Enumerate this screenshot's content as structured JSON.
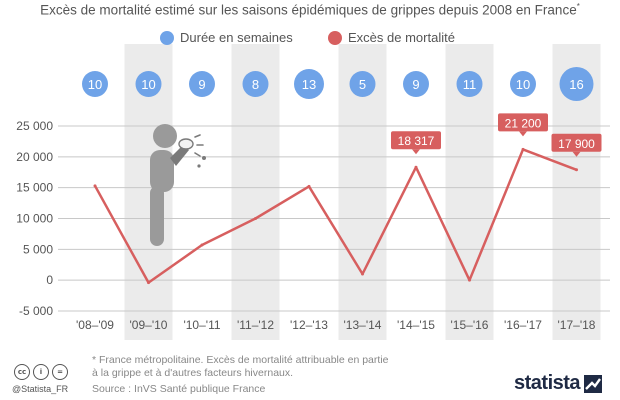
{
  "title": "Excès de mortalité estimé sur les saisons épidémiques de grippes depuis 2008 en France",
  "title_marker": "*",
  "colors": {
    "duration": "#6fa3e8",
    "mortality": "#d75f5f",
    "band": "#ebebeb",
    "grid": "#c8c8c8",
    "text": "#555555"
  },
  "icons": [
    "sneezing-person-icon",
    "cc-icon",
    "by-icon",
    "equals-icon",
    "statista-logo-icon"
  ],
  "chart_data": {
    "type": "line",
    "title": "Excès de mortalité estimé sur les saisons épidémiques de grippes depuis 2008 en France",
    "categories": [
      "'08–'09",
      "'09–'10",
      "'10–'11",
      "'11–'12",
      "'12–'13",
      "'13–'14",
      "'14–'15",
      "'15–'16",
      "'16–'17",
      "'17–'18"
    ],
    "series": [
      {
        "name": "Excès de mortalité",
        "values": [
          15300,
          -400,
          5700,
          10000,
          15200,
          1000,
          18317,
          0,
          21200,
          17900
        ],
        "data_labels": {
          "6": "18 317",
          "8": "21 200",
          "9": "17 900"
        }
      },
      {
        "name": "Durée en semaines",
        "values": [
          10,
          10,
          9,
          8,
          13,
          5,
          9,
          11,
          10,
          16
        ]
      }
    ],
    "ylim": [
      -5000,
      25000
    ],
    "yticks": [
      25000,
      20000,
      15000,
      10000,
      5000,
      0,
      -5000
    ],
    "ytick_labels": [
      "25 000",
      "20 000",
      "15 000",
      "10 000",
      "5 000",
      "0",
      "-5 000"
    ],
    "grid": true,
    "alternating_bands": true,
    "legend_position": "top-center"
  },
  "footer": {
    "footnote": "* France métropolitaine. Excès de mortalité attribuable en partie à la grippe et à d'autres facteurs hivernaux.",
    "source": "Source : InVS Santé publique France",
    "handle": "@Statista_FR",
    "logo_text": "statista"
  }
}
